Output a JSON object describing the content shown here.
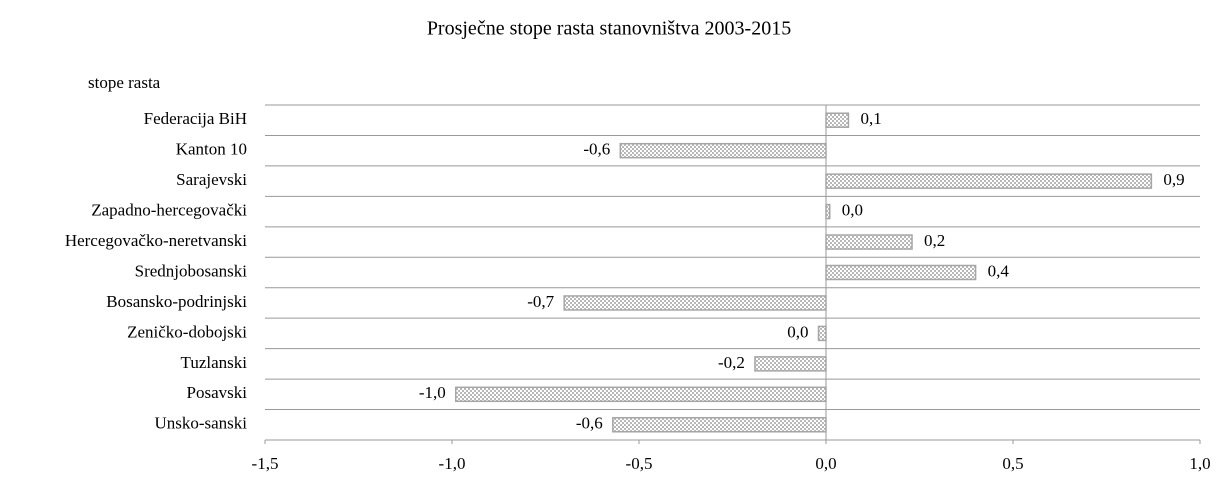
{
  "chart_data": {
    "type": "bar",
    "orientation": "horizontal",
    "title": "Prosječne stope rasta stanovništva 2003-2015",
    "y_label": "stope rasta",
    "categories": [
      "Federacija BiH",
      "Kanton 10",
      "Sarajevski",
      "Zapadno-hercegovački",
      "Hercegovačko-neretvanski",
      "Srednjobosanski",
      "Bosansko-podrinjski ",
      "Zeničko-dobojski",
      "Tuzlanski",
      "Posavski",
      "Unsko-sanski"
    ],
    "values": [
      0.06,
      -0.55,
      0.87,
      0.01,
      0.23,
      0.4,
      -0.7,
      -0.02,
      -0.19,
      -0.99,
      -0.57
    ],
    "value_labels": [
      "0,1",
      "-0,6",
      "0,9",
      "0,0",
      "0,2",
      "0,4",
      "-0,7",
      "0,0",
      "-0,2",
      "-1,0",
      "-0,6"
    ],
    "color": "#a6a6a6",
    "xlim": [
      -1.5,
      1.0
    ],
    "xticks": [
      {
        "value": -1.5,
        "label": "-1,5"
      },
      {
        "value": -1.0,
        "label": "-1,0"
      },
      {
        "value": -0.5,
        "label": "-0,5"
      },
      {
        "value": 0,
        "label": "0,0"
      },
      {
        "value": 0.5,
        "label": "0,5"
      },
      {
        "value": 1.0,
        "label": "1,0"
      }
    ],
    "grid": true
  }
}
